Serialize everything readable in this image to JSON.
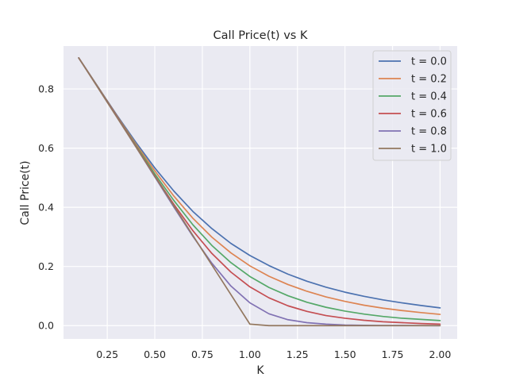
{
  "chart_data": {
    "type": "line",
    "title": "Call Price(t) vs K",
    "xlabel": "K",
    "ylabel": "Call Price(t)",
    "xlim": [
      0.02,
      2.09
    ],
    "ylim": [
      -0.045,
      0.945
    ],
    "xticks": [
      0.25,
      0.5,
      0.75,
      1.0,
      1.25,
      1.5,
      1.75,
      2.0
    ],
    "xtick_labels": [
      "0.25",
      "0.50",
      "0.75",
      "1.00",
      "1.25",
      "1.50",
      "1.75",
      "2.00"
    ],
    "yticks": [
      0.0,
      0.2,
      0.4,
      0.6,
      0.8
    ],
    "ytick_labels": [
      "0.0",
      "0.2",
      "0.4",
      "0.6",
      "0.8"
    ],
    "grid": true,
    "legend_position": "top-right",
    "x": [
      0.1,
      0.2,
      0.3,
      0.4,
      0.5,
      0.6,
      0.7,
      0.8,
      0.9,
      1.0,
      1.1,
      1.2,
      1.3,
      1.4,
      1.5,
      1.6,
      1.7,
      1.8,
      1.9,
      2.0
    ],
    "series": [
      {
        "name": "t = 0.0",
        "color": "#4c72b0",
        "values": [
          0.905,
          0.808,
          0.712,
          0.62,
          0.533,
          0.455,
          0.386,
          0.328,
          0.278,
          0.237,
          0.203,
          0.174,
          0.15,
          0.13,
          0.113,
          0.099,
          0.087,
          0.077,
          0.068,
          0.06
        ]
      },
      {
        "name": "t = 0.2",
        "color": "#dd8452",
        "values": [
          0.905,
          0.808,
          0.71,
          0.614,
          0.523,
          0.438,
          0.363,
          0.299,
          0.246,
          0.202,
          0.167,
          0.139,
          0.116,
          0.097,
          0.082,
          0.069,
          0.059,
          0.051,
          0.044,
          0.038
        ]
      },
      {
        "name": "t = 0.4",
        "color": "#55a868",
        "values": [
          0.905,
          0.808,
          0.709,
          0.61,
          0.513,
          0.423,
          0.341,
          0.271,
          0.213,
          0.166,
          0.129,
          0.101,
          0.079,
          0.062,
          0.049,
          0.039,
          0.031,
          0.025,
          0.021,
          0.017
        ]
      },
      {
        "name": "t = 0.6",
        "color": "#c44e52",
        "values": [
          0.905,
          0.807,
          0.708,
          0.607,
          0.506,
          0.41,
          0.321,
          0.244,
          0.181,
          0.131,
          0.094,
          0.067,
          0.048,
          0.034,
          0.025,
          0.018,
          0.013,
          0.01,
          0.007,
          0.005
        ]
      },
      {
        "name": "t = 0.8",
        "color": "#8172b3",
        "values": [
          0.905,
          0.806,
          0.706,
          0.605,
          0.503,
          0.401,
          0.302,
          0.211,
          0.134,
          0.077,
          0.04,
          0.02,
          0.01,
          0.005,
          0.002,
          0.001,
          0.0005,
          0.0002,
          0.0001,
          0.0
        ]
      },
      {
        "name": "t = 1.0",
        "color": "#937860",
        "values": [
          0.905,
          0.805,
          0.705,
          0.605,
          0.505,
          0.405,
          0.305,
          0.205,
          0.105,
          0.005,
          0.0,
          0.0,
          0.0,
          0.0,
          0.0,
          0.0,
          0.0,
          0.0,
          0.0,
          0.0
        ]
      }
    ]
  }
}
